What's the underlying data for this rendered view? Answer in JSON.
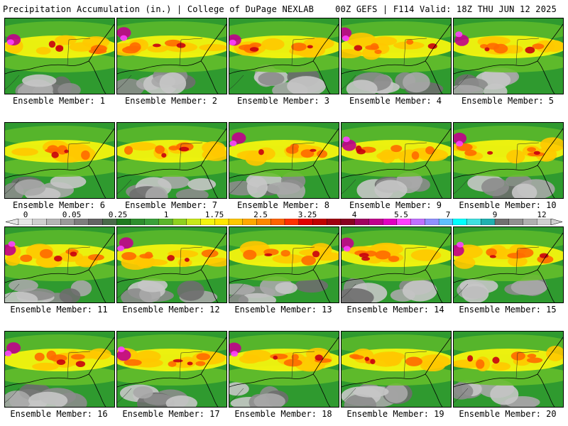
{
  "header": {
    "title_left": "Precipitation Accumulation (in.) | College of DuPage NEXLAB",
    "title_right": "00Z GEFS | F114 Valid: 18Z THU JUN 12 2025"
  },
  "colorbar": {
    "labels": [
      "0",
      "0.05",
      "0.25",
      "1",
      "1.75",
      "2.5",
      "3.25",
      "4",
      "5.5",
      "7",
      "9",
      "12"
    ],
    "colors": [
      "#e6e6e6",
      "#cfcfcf",
      "#b5b5b5",
      "#9a9a9a",
      "#7e7e7e",
      "#646464",
      "#4a6a4a",
      "#1f7a1f",
      "#2e8e2e",
      "#3aa03a",
      "#5bb52b",
      "#8fd11e",
      "#c8e81a",
      "#f4f40e",
      "#ffe600",
      "#ffc800",
      "#ffa800",
      "#ff8800",
      "#ff6400",
      "#ff3200",
      "#e00000",
      "#c00000",
      "#a00010",
      "#880020",
      "#a00060",
      "#c0008c",
      "#e000c0",
      "#ff40ff",
      "#c070ff",
      "#9090ff",
      "#60c0ff",
      "#00ffff",
      "#40e0e0",
      "#20b0b0",
      "#707070",
      "#909090",
      "#b0b0b0",
      "#d0d0d0"
    ]
  },
  "members": [
    {
      "label": "Ensemble Member: 1"
    },
    {
      "label": "Ensemble Member: 2"
    },
    {
      "label": "Ensemble Member: 3"
    },
    {
      "label": "Ensemble Member: 4"
    },
    {
      "label": "Ensemble Member: 5"
    },
    {
      "label": "Ensemble Member: 6"
    },
    {
      "label": "Ensemble Member: 7"
    },
    {
      "label": "Ensemble Member: 8"
    },
    {
      "label": "Ensemble Member: 9"
    },
    {
      "label": "Ensemble Member: 10"
    },
    {
      "label": "Ensemble Member: 11"
    },
    {
      "label": "Ensemble Member: 12"
    },
    {
      "label": "Ensemble Member: 13"
    },
    {
      "label": "Ensemble Member: 14"
    },
    {
      "label": "Ensemble Member: 15"
    },
    {
      "label": "Ensemble Member: 16"
    },
    {
      "label": "Ensemble Member: 17"
    },
    {
      "label": "Ensemble Member: 18"
    },
    {
      "label": "Ensemble Member: 19"
    },
    {
      "label": "Ensemble Member: 20"
    }
  ]
}
